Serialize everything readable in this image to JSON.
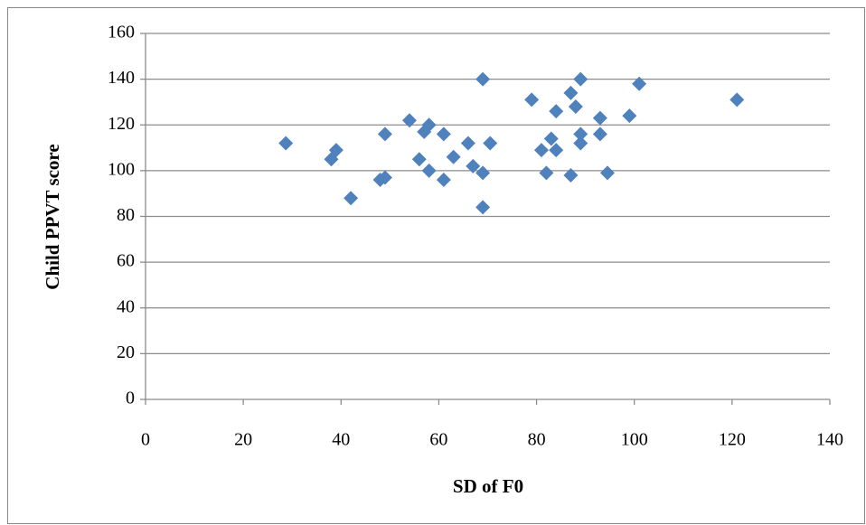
{
  "chart_data": {
    "type": "scatter",
    "x_label": "SD of F0",
    "y_label": "Child PPVT score",
    "color": "#4f81bd",
    "grid": true,
    "marker": "diamond",
    "xlim": [
      0,
      140
    ],
    "xticks": [
      0,
      20,
      40,
      60,
      80,
      100,
      120,
      140
    ],
    "ylim": [
      0,
      160
    ],
    "yticks": [
      0,
      20,
      40,
      60,
      80,
      100,
      120,
      140,
      160
    ],
    "x": [
      28.7,
      39,
      38,
      42,
      48,
      49,
      49,
      54,
      56,
      57,
      58,
      58,
      61,
      61,
      63,
      66,
      67,
      69,
      69,
      69,
      70.5,
      79,
      81,
      82,
      83,
      84,
      84,
      87,
      88,
      89,
      87,
      89,
      89,
      93,
      93,
      94.5,
      99,
      101,
      121
    ],
    "y": [
      112,
      109,
      105,
      88,
      96,
      97,
      116,
      122,
      105,
      117,
      120,
      100,
      116,
      96,
      106,
      112,
      102,
      140,
      99,
      84,
      112,
      131,
      109,
      99,
      114,
      126,
      109,
      134,
      128,
      140,
      98,
      112,
      116,
      123,
      116,
      99,
      124,
      138,
      131
    ]
  }
}
